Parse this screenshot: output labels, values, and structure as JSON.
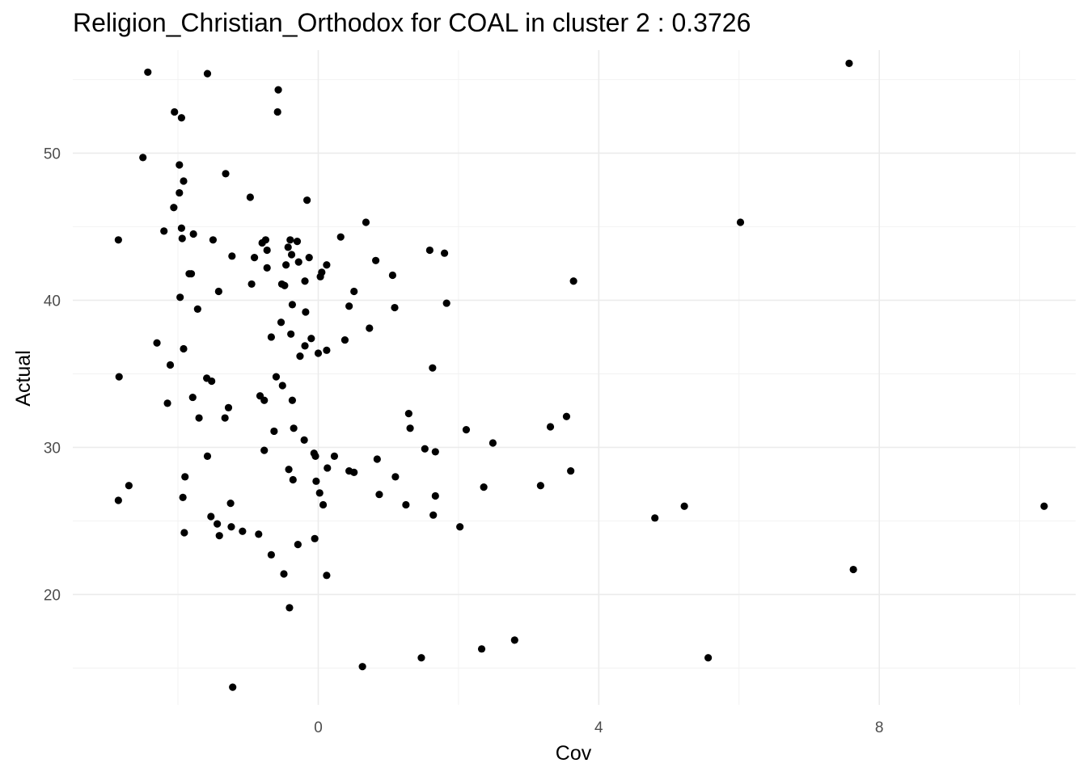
{
  "chart_data": {
    "type": "scatter",
    "title": "Religion_Christian_Orthodox for COAL in cluster 2 : 0.3726",
    "xlabel": "Cov",
    "ylabel": "Actual",
    "xlim": [
      -3.5,
      10.8
    ],
    "ylim": [
      12.5,
      57.0
    ],
    "x_ticks": [
      0,
      4,
      8
    ],
    "y_ticks": [
      20,
      30,
      40,
      50
    ],
    "grid": true,
    "point_color": "#000000",
    "points": [
      [
        -2.85,
        44.1
      ],
      [
        -2.05,
        52.8
      ],
      [
        -2.84,
        34.8
      ],
      [
        -2.5,
        49.7
      ],
      [
        -2.43,
        55.5
      ],
      [
        -2.7,
        27.4
      ],
      [
        -2.85,
        26.4
      ],
      [
        -2.3,
        37.1
      ],
      [
        -2.11,
        35.6
      ],
      [
        -2.2,
        44.7
      ],
      [
        -2.15,
        33.0
      ],
      [
        -2.06,
        46.3
      ],
      [
        -1.98,
        49.2
      ],
      [
        -1.95,
        52.4
      ],
      [
        -1.92,
        48.1
      ],
      [
        -1.95,
        44.9
      ],
      [
        -1.98,
        47.3
      ],
      [
        -1.94,
        44.2
      ],
      [
        -1.97,
        40.2
      ],
      [
        -1.9,
        28.0
      ],
      [
        -1.91,
        24.2
      ],
      [
        -1.92,
        36.7
      ],
      [
        -1.93,
        26.6
      ],
      [
        -1.84,
        41.8
      ],
      [
        -1.81,
        41.8
      ],
      [
        -1.79,
        33.4
      ],
      [
        -1.78,
        44.5
      ],
      [
        -1.72,
        39.4
      ],
      [
        -1.7,
        32.0
      ],
      [
        -1.58,
        55.4
      ],
      [
        -1.59,
        34.7
      ],
      [
        -1.58,
        29.4
      ],
      [
        -1.52,
        34.5
      ],
      [
        -1.53,
        25.3
      ],
      [
        -1.5,
        44.1
      ],
      [
        -1.44,
        24.8
      ],
      [
        -1.42,
        40.6
      ],
      [
        -1.41,
        24.0
      ],
      [
        -1.32,
        48.6
      ],
      [
        -1.33,
        32.0
      ],
      [
        -1.28,
        32.7
      ],
      [
        -1.25,
        26.2
      ],
      [
        -1.24,
        24.6
      ],
      [
        -1.23,
        43.0
      ],
      [
        -1.22,
        13.7
      ],
      [
        -1.08,
        24.3
      ],
      [
        -0.97,
        47.0
      ],
      [
        -0.95,
        41.1
      ],
      [
        -0.91,
        42.9
      ],
      [
        -0.85,
        24.1
      ],
      [
        -0.83,
        33.5
      ],
      [
        -0.8,
        43.9
      ],
      [
        -0.77,
        33.2
      ],
      [
        -0.77,
        29.8
      ],
      [
        -0.75,
        44.1
      ],
      [
        -0.73,
        43.4
      ],
      [
        -0.73,
        42.2
      ],
      [
        -0.67,
        37.5
      ],
      [
        -0.67,
        22.7
      ],
      [
        -0.63,
        31.1
      ],
      [
        -0.6,
        34.8
      ],
      [
        -0.58,
        52.8
      ],
      [
        -0.57,
        54.3
      ],
      [
        -0.53,
        38.5
      ],
      [
        -0.51,
        34.2
      ],
      [
        -0.52,
        41.1
      ],
      [
        -0.48,
        41.0
      ],
      [
        -0.49,
        21.4
      ],
      [
        -0.46,
        42.4
      ],
      [
        -0.43,
        43.6
      ],
      [
        -0.42,
        28.5
      ],
      [
        -0.41,
        19.1
      ],
      [
        -0.4,
        44.1
      ],
      [
        -0.39,
        37.7
      ],
      [
        -0.38,
        43.1
      ],
      [
        -0.37,
        39.7
      ],
      [
        -0.37,
        33.2
      ],
      [
        -0.36,
        27.8
      ],
      [
        -0.35,
        31.3
      ],
      [
        -0.3,
        44.0
      ],
      [
        -0.29,
        23.4
      ],
      [
        -0.28,
        42.6
      ],
      [
        -0.26,
        36.2
      ],
      [
        -0.2,
        30.5
      ],
      [
        -0.19,
        41.3
      ],
      [
        -0.18,
        39.2
      ],
      [
        -0.19,
        36.9
      ],
      [
        -0.16,
        46.8
      ],
      [
        -0.13,
        42.9
      ],
      [
        -0.1,
        37.4
      ],
      [
        -0.05,
        23.8
      ],
      [
        -0.06,
        29.6
      ],
      [
        -0.04,
        29.4
      ],
      [
        -0.03,
        27.7
      ],
      [
        0.0,
        36.4
      ],
      [
        0.02,
        26.9
      ],
      [
        0.03,
        41.6
      ],
      [
        0.05,
        41.9
      ],
      [
        0.07,
        26.1
      ],
      [
        0.12,
        36.6
      ],
      [
        0.12,
        21.3
      ],
      [
        0.12,
        42.4
      ],
      [
        0.13,
        28.6
      ],
      [
        0.23,
        29.4
      ],
      [
        0.32,
        44.3
      ],
      [
        0.38,
        37.3
      ],
      [
        0.44,
        28.4
      ],
      [
        0.44,
        39.6
      ],
      [
        0.51,
        40.6
      ],
      [
        0.51,
        28.3
      ],
      [
        0.63,
        15.1
      ],
      [
        0.68,
        45.3
      ],
      [
        0.73,
        38.1
      ],
      [
        0.82,
        42.7
      ],
      [
        0.84,
        29.2
      ],
      [
        0.87,
        26.8
      ],
      [
        1.06,
        41.7
      ],
      [
        1.09,
        39.5
      ],
      [
        1.1,
        28.0
      ],
      [
        1.25,
        26.1
      ],
      [
        1.29,
        32.3
      ],
      [
        1.31,
        31.3
      ],
      [
        1.47,
        15.7
      ],
      [
        1.52,
        29.9
      ],
      [
        1.59,
        43.4
      ],
      [
        1.63,
        35.4
      ],
      [
        1.64,
        25.4
      ],
      [
        1.67,
        26.7
      ],
      [
        1.67,
        29.7
      ],
      [
        1.8,
        43.2
      ],
      [
        1.83,
        39.8
      ],
      [
        2.02,
        24.6
      ],
      [
        2.11,
        31.2
      ],
      [
        2.33,
        16.3
      ],
      [
        2.36,
        27.3
      ],
      [
        2.49,
        30.3
      ],
      [
        2.8,
        16.9
      ],
      [
        3.17,
        27.4
      ],
      [
        3.31,
        31.4
      ],
      [
        3.54,
        32.1
      ],
      [
        3.6,
        28.4
      ],
      [
        3.64,
        41.3
      ],
      [
        4.8,
        25.2
      ],
      [
        5.22,
        26.0
      ],
      [
        5.56,
        15.7
      ],
      [
        6.02,
        45.3
      ],
      [
        7.57,
        56.1
      ],
      [
        7.63,
        21.7
      ],
      [
        10.35,
        26.0
      ]
    ]
  }
}
